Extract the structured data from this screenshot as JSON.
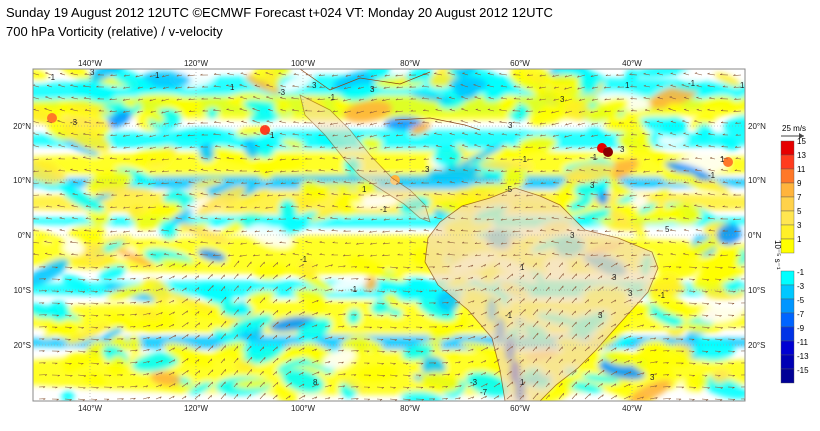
{
  "header": {
    "line1": "Sunday 19 August 2012 12UTC ©ECMWF Forecast t+024 VT: Monday 20 August 2012 12UTC",
    "line2": "700 hPa Vorticity (relative) / v-velocity"
  },
  "map": {
    "lon_labels": [
      "140°W",
      "120°W",
      "100°W",
      "80°W",
      "60°W",
      "40°W"
    ],
    "lat_labels": [
      "20°N",
      "10°N",
      "0°N",
      "10°S",
      "20°S"
    ],
    "land_color": "#f5deb3",
    "field_labels": [
      "3",
      "1",
      "-1",
      "3",
      "-1",
      "3",
      "1",
      "-3",
      "3",
      "1",
      "-1",
      "1",
      "-3",
      "1",
      "3",
      "-1",
      "3",
      "-1",
      "1",
      "3",
      "-1",
      "-5",
      "3",
      "1",
      "-1",
      "-7",
      "3",
      "1",
      "-1",
      "3",
      "5",
      "-1",
      "3",
      "-1",
      "3",
      "8",
      "-3",
      "1",
      "3",
      "-1"
    ]
  },
  "legend": {
    "wind_unit": "25 m/s",
    "positive_ticks": [
      "15",
      "13",
      "11",
      "9",
      "7",
      "5",
      "3",
      "1"
    ],
    "negative_ticks": [
      "-1",
      "-3",
      "-5",
      "-7",
      "-9",
      "-11",
      "-13",
      "-15"
    ],
    "positive_colors": [
      "#e60000",
      "#ff3c1e",
      "#ff7828",
      "#ffb43c",
      "#ffd24b",
      "#ffe650",
      "#fff028",
      "#ffff00"
    ],
    "negative_colors": [
      "#00ffff",
      "#00c8ff",
      "#0096ff",
      "#0064ff",
      "#0032e6",
      "#0000d2",
      "#0000b4",
      "#000096"
    ],
    "units_label": "10⁻⁵ s⁻¹"
  }
}
